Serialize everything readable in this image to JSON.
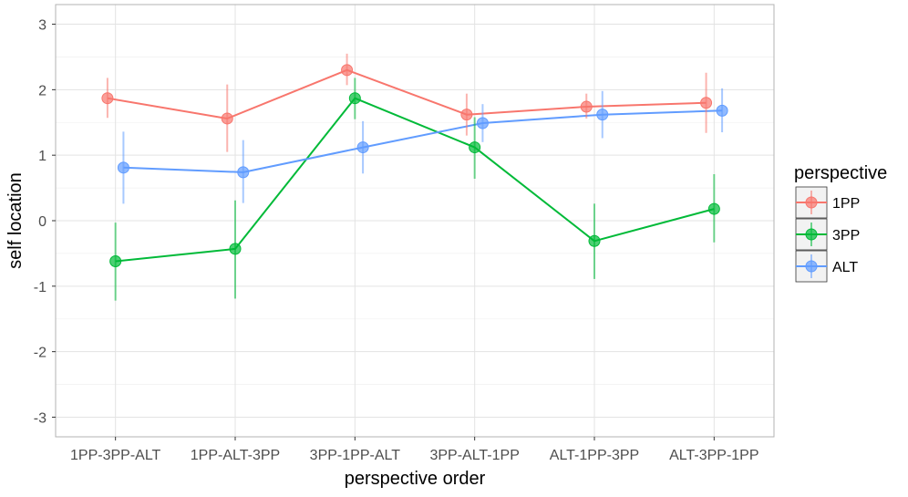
{
  "chart_data": {
    "type": "line",
    "title": "",
    "xlabel": "perspective order",
    "ylabel": "self location",
    "categories": [
      "1PP-3PP-ALT",
      "1PP-ALT-3PP",
      "3PP-1PP-ALT",
      "3PP-ALT-1PP",
      "ALT-1PP-3PP",
      "ALT-3PP-1PP"
    ],
    "yticks": [
      -3,
      -2,
      -1,
      0,
      1,
      2,
      3
    ],
    "ylim": [
      -3.3,
      3.3
    ],
    "grid": true,
    "legend": {
      "title": "perspective",
      "position": "right"
    },
    "series": [
      {
        "name": "1PP",
        "color": "#F8766D",
        "values": [
          1.87,
          1.56,
          2.3,
          1.62,
          1.74,
          1.8
        ],
        "lower": [
          1.57,
          1.05,
          2.07,
          1.3,
          1.56,
          1.34
        ],
        "upper": [
          2.18,
          2.08,
          2.55,
          1.94,
          1.94,
          2.26
        ]
      },
      {
        "name": "3PP",
        "color": "#00BA38",
        "values": [
          -0.62,
          -0.43,
          1.87,
          1.12,
          -0.31,
          0.18
        ],
        "lower": [
          -1.22,
          -1.19,
          1.55,
          0.64,
          -0.89,
          -0.33
        ],
        "upper": [
          -0.03,
          0.31,
          2.18,
          1.58,
          0.26,
          0.71
        ]
      },
      {
        "name": "ALT",
        "color": "#619CFF",
        "values": [
          0.81,
          0.74,
          1.12,
          1.49,
          1.62,
          1.68
        ],
        "lower": [
          0.26,
          0.27,
          0.72,
          1.2,
          1.26,
          1.35
        ],
        "upper": [
          1.36,
          1.23,
          1.52,
          1.78,
          1.98,
          2.02
        ]
      }
    ]
  }
}
